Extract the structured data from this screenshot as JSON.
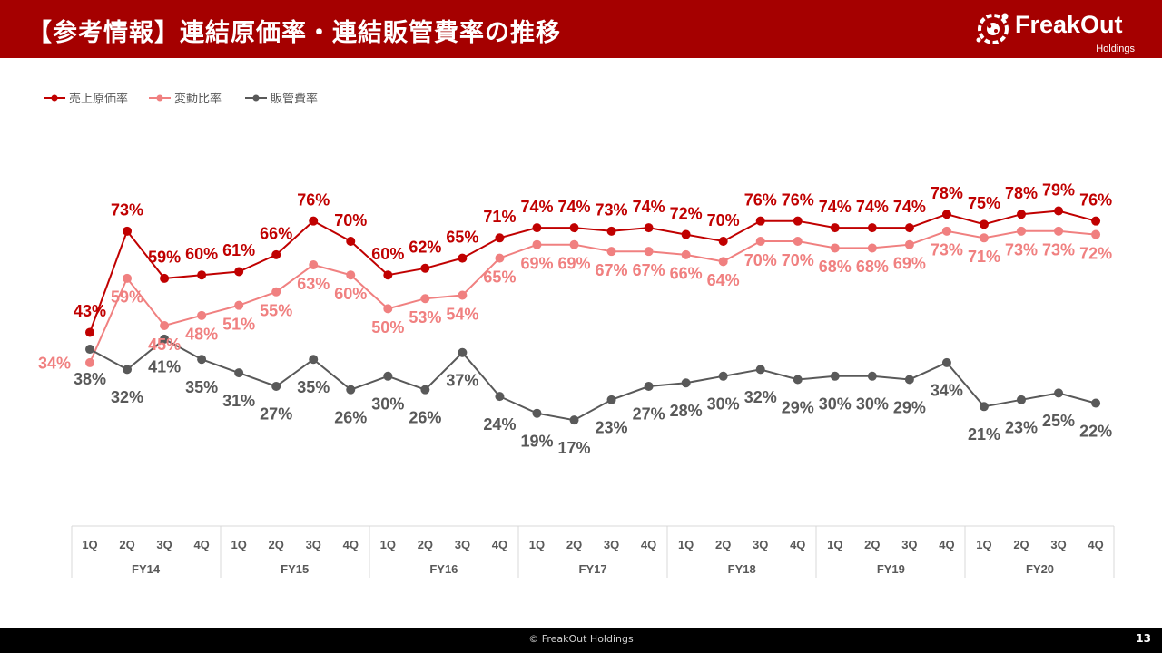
{
  "header": {
    "title": "【参考情報】連結原価率・連結販管費率の推移"
  },
  "logo": {
    "name": "FreakOut",
    "sub": "Holdings"
  },
  "footer": {
    "copyright": "© FreakOut Holdings",
    "page": "13"
  },
  "colors": {
    "header_bg": "#a50000",
    "cost_of_sales": "#c00000",
    "variable_ratio": "#f08080",
    "sga": "#595959"
  },
  "chart_data": {
    "type": "line",
    "categories": [
      "1Q",
      "2Q",
      "3Q",
      "4Q",
      "1Q",
      "2Q",
      "3Q",
      "4Q",
      "1Q",
      "2Q",
      "3Q",
      "4Q",
      "1Q",
      "2Q",
      "3Q",
      "4Q",
      "1Q",
      "2Q",
      "3Q",
      "4Q",
      "1Q",
      "2Q",
      "3Q",
      "4Q",
      "1Q",
      "2Q",
      "3Q",
      "4Q"
    ],
    "groups": [
      "FY14",
      "FY15",
      "FY16",
      "FY17",
      "FY18",
      "FY19",
      "FY20"
    ],
    "legend_position": "top-left",
    "grid": false,
    "ylim": [
      0,
      100
    ],
    "series": [
      {
        "name": "売上原価率",
        "color": "#c00000",
        "values": [
          43,
          73,
          59,
          60,
          61,
          66,
          76,
          70,
          60,
          62,
          65,
          71,
          74,
          74,
          73,
          74,
          72,
          70,
          76,
          76,
          74,
          74,
          74,
          78,
          75,
          78,
          79,
          76
        ]
      },
      {
        "name": "変動比率",
        "color": "#f08080",
        "values": [
          34,
          59,
          45,
          48,
          51,
          55,
          63,
          60,
          50,
          53,
          54,
          65,
          69,
          69,
          67,
          67,
          66,
          64,
          70,
          70,
          68,
          68,
          69,
          73,
          71,
          73,
          73,
          72
        ]
      },
      {
        "name": "販管費率",
        "color": "#595959",
        "values": [
          38,
          32,
          41,
          35,
          31,
          27,
          35,
          26,
          30,
          26,
          37,
          24,
          19,
          17,
          23,
          27,
          28,
          30,
          32,
          29,
          30,
          30,
          29,
          34,
          21,
          23,
          25,
          22
        ]
      }
    ]
  }
}
